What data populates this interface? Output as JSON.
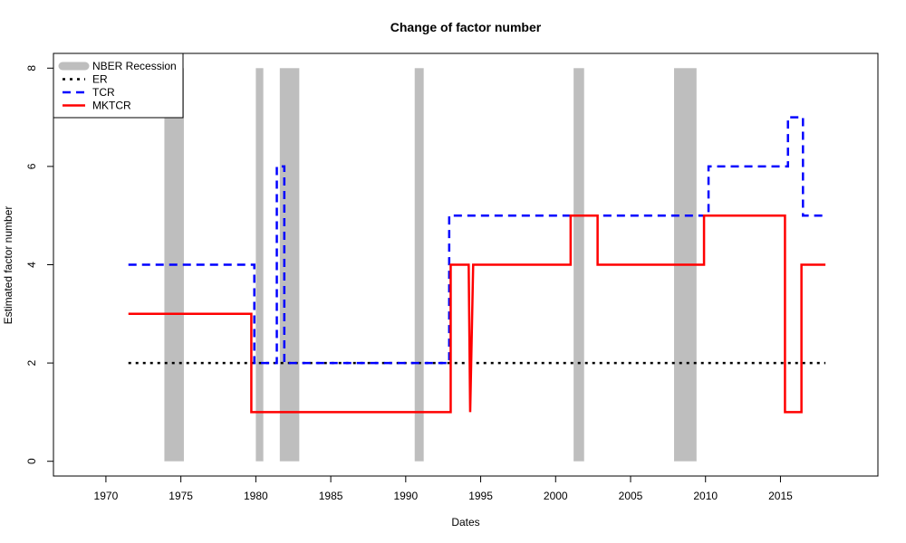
{
  "chart_data": {
    "type": "line",
    "title": "Change of factor number",
    "xlabel": "Dates",
    "ylabel": "Estimated factor number",
    "xlim": [
      1966.5,
      2021.5
    ],
    "ylim": [
      -0.3,
      8.3
    ],
    "x_ticks": [
      1970,
      1975,
      1980,
      1985,
      1990,
      1995,
      2000,
      2005,
      2010,
      2015
    ],
    "y_ticks": [
      0,
      2,
      4,
      6,
      8
    ],
    "grid": false,
    "legend_position": "top-left",
    "recessions": {
      "name": "NBER Recession",
      "color": "#bebebe",
      "periods": [
        [
          1973.9,
          1975.2
        ],
        [
          1980.0,
          1980.5
        ],
        [
          1981.6,
          1982.9
        ],
        [
          1990.6,
          1991.2
        ],
        [
          2001.2,
          2001.9
        ],
        [
          2007.9,
          2009.4
        ]
      ]
    },
    "series": [
      {
        "name": "ER",
        "color": "#000000",
        "dash": "dotted",
        "step_points": [
          [
            1971.5,
            2
          ],
          [
            2018.0,
            2
          ]
        ]
      },
      {
        "name": "TCR",
        "color": "#0000ff",
        "dash": "dashed",
        "step_points": [
          [
            1971.5,
            4
          ],
          [
            1979.9,
            4
          ],
          [
            1979.9,
            2
          ],
          [
            1981.4,
            2
          ],
          [
            1981.4,
            6
          ],
          [
            1981.9,
            6
          ],
          [
            1981.9,
            2
          ],
          [
            1992.9,
            2
          ],
          [
            1992.9,
            5
          ],
          [
            2010.2,
            5
          ],
          [
            2010.2,
            6
          ],
          [
            2015.5,
            6
          ],
          [
            2015.5,
            7
          ],
          [
            2016.5,
            7
          ],
          [
            2016.5,
            5
          ],
          [
            2018.0,
            5
          ]
        ]
      },
      {
        "name": "MKTCR",
        "color": "#ff0000",
        "dash": "solid",
        "step_points": [
          [
            1971.5,
            3
          ],
          [
            1979.7,
            3
          ],
          [
            1979.7,
            1
          ],
          [
            1993.0,
            1
          ],
          [
            1993.0,
            4
          ],
          [
            1994.2,
            4
          ],
          [
            1994.3,
            1
          ],
          [
            1994.5,
            4
          ],
          [
            2001.0,
            4
          ],
          [
            2001.0,
            5
          ],
          [
            2002.8,
            5
          ],
          [
            2002.8,
            4
          ],
          [
            2009.9,
            4
          ],
          [
            2009.9,
            5
          ],
          [
            2015.3,
            5
          ],
          [
            2015.3,
            1
          ],
          [
            2016.4,
            1
          ],
          [
            2016.4,
            4
          ],
          [
            2018.0,
            4
          ]
        ]
      }
    ]
  }
}
